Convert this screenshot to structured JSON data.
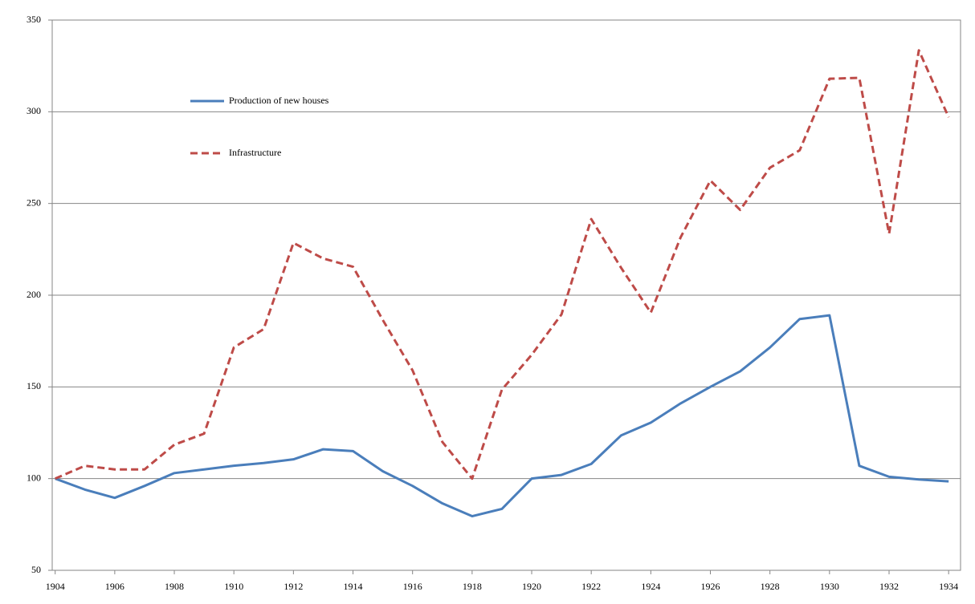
{
  "chart_data": {
    "type": "line",
    "x": [
      1904,
      1905,
      1906,
      1907,
      1908,
      1909,
      1910,
      1911,
      1912,
      1913,
      1914,
      1915,
      1916,
      1917,
      1918,
      1919,
      1920,
      1921,
      1922,
      1923,
      1924,
      1925,
      1926,
      1927,
      1928,
      1929,
      1930,
      1931,
      1932,
      1933,
      1934
    ],
    "series": [
      {
        "name": "Production of new houses",
        "color": "#4a7ebb",
        "dashed": false,
        "values": [
          100,
          94,
          89.5,
          96,
          103,
          105,
          107,
          108.5,
          110.5,
          116,
          115,
          104,
          96,
          86.5,
          79.5,
          83.5,
          100,
          102,
          108,
          123.5,
          130.5,
          141,
          150,
          158.5,
          171.5,
          187,
          189,
          107,
          101,
          99.5,
          98.5
        ]
      },
      {
        "name": "Infrastructure",
        "color": "#be4b48",
        "dashed": true,
        "values": [
          100,
          107,
          105,
          105,
          118.5,
          124.5,
          171.5,
          181.5,
          228.5,
          220,
          215.5,
          186.5,
          159,
          120,
          100,
          148.5,
          167.5,
          189.5,
          241.5,
          215,
          190.5,
          231.5,
          262.5,
          246.5,
          269.5,
          279,
          318,
          318.5,
          233.5,
          333.5,
          297
        ]
      }
    ],
    "xlim": [
      1903.9,
      1934.4
    ],
    "xticks": [
      1904,
      1906,
      1908,
      1910,
      1912,
      1914,
      1916,
      1918,
      1920,
      1922,
      1924,
      1926,
      1928,
      1930,
      1932,
      1934
    ],
    "ylim": [
      50,
      350
    ],
    "yticks": [
      50,
      100,
      150,
      200,
      250,
      300,
      350
    ],
    "grid": true,
    "legend": "upper-left"
  }
}
